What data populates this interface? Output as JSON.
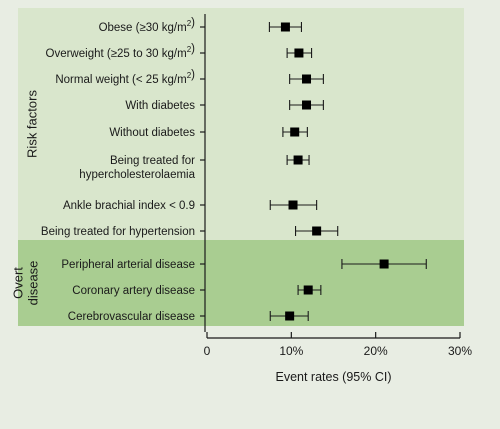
{
  "chart_data": {
    "type": "forest",
    "xlabel": "Event rates (95% CI)",
    "xlim": [
      0,
      30
    ],
    "ticks": [
      0,
      10,
      20,
      30
    ],
    "tick_labels": [
      "0",
      "10%",
      "20%",
      "30%"
    ],
    "groups": [
      {
        "name": "Risk factors",
        "color": "#d9e6cc",
        "rows": [
          0,
          7
        ]
      },
      {
        "name": "Overt\ndisease",
        "color": "#a9cd91",
        "rows": [
          8,
          10
        ]
      }
    ],
    "rows": [
      {
        "label": "Obese (≥30 kg/m²)",
        "estimate": 9.3,
        "low": 7.4,
        "high": 11.2
      },
      {
        "label": "Overweight (≥25 to 30 kg/m²)",
        "estimate": 10.9,
        "low": 9.5,
        "high": 12.4
      },
      {
        "label": "Normal weight (< 25 kg/m²)",
        "estimate": 11.8,
        "low": 9.8,
        "high": 13.8
      },
      {
        "label": "With diabetes",
        "estimate": 11.8,
        "low": 9.8,
        "high": 13.8
      },
      {
        "label": "Without diabetes",
        "estimate": 10.4,
        "low": 9.0,
        "high": 11.9
      },
      {
        "label": "Being treated for\nhypercholesterolaemia",
        "estimate": 10.8,
        "low": 9.5,
        "high": 12.1
      },
      {
        "label": "Ankle brachial index < 0.9",
        "estimate": 10.2,
        "low": 7.5,
        "high": 13.0
      },
      {
        "label": "Being treated for hypertension",
        "estimate": 13.0,
        "low": 10.5,
        "high": 15.5
      },
      {
        "label": "Peripheral arterial disease",
        "estimate": 21.0,
        "low": 16.0,
        "high": 26.0
      },
      {
        "label": "Coronary artery disease",
        "estimate": 12.0,
        "low": 10.8,
        "high": 13.5
      },
      {
        "label": "Cerebrovascular disease",
        "estimate": 9.8,
        "low": 7.5,
        "high": 12.0
      }
    ],
    "marker": "square",
    "marker_color": "#000000",
    "grid": false
  }
}
